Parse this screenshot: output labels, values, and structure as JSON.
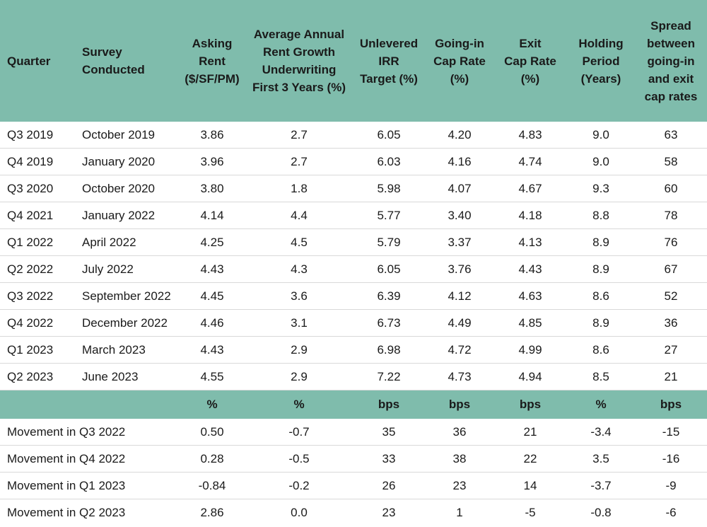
{
  "headers": [
    "Quarter",
    "Survey Conducted",
    "Asking Rent ($/SF/PM)",
    "Average Annual Rent Growth Underwriting First 3 Years (%)",
    "Unlevered IRR Target (%)",
    "Going-in Cap Rate (%)",
    "Exit Cap Rate (%)",
    "Holding Period (Years)",
    "Spread between going-in and exit cap rates"
  ],
  "header_lines": [
    [
      "Quarter"
    ],
    [
      "Survey",
      "Conducted"
    ],
    [
      "Asking",
      "Rent",
      "($/SF/PM)"
    ],
    [
      "Average Annual",
      "Rent Growth",
      "Underwriting",
      "First 3 Years (%)"
    ],
    [
      "Unlevered",
      "IRR",
      "Target (%)"
    ],
    [
      "Going-in",
      "Cap Rate",
      "(%)"
    ],
    [
      "Exit",
      "Cap Rate",
      "(%)"
    ],
    [
      "Holding",
      "Period",
      "(Years)"
    ],
    [
      "Spread",
      "between",
      "going-in",
      "and exit",
      "cap rates"
    ]
  ],
  "rows": [
    [
      "Q3 2019",
      "October 2019",
      "3.86",
      "2.7",
      "6.05",
      "4.20",
      "4.83",
      "9.0",
      "63"
    ],
    [
      "Q4 2019",
      "January 2020",
      "3.96",
      "2.7",
      "6.03",
      "4.16",
      "4.74",
      "9.0",
      "58"
    ],
    [
      "Q3 2020",
      "October 2020",
      "3.80",
      "1.8",
      "5.98",
      "4.07",
      "4.67",
      "9.3",
      "60"
    ],
    [
      "Q4 2021",
      "January 2022",
      "4.14",
      "4.4",
      "5.77",
      "3.40",
      "4.18",
      "8.8",
      "78"
    ],
    [
      "Q1 2022",
      "April 2022",
      "4.25",
      "4.5",
      "5.79",
      "3.37",
      "4.13",
      "8.9",
      "76"
    ],
    [
      "Q2 2022",
      "July 2022",
      "4.43",
      "4.3",
      "6.05",
      "3.76",
      "4.43",
      "8.9",
      "67"
    ],
    [
      "Q3 2022",
      "September 2022",
      "4.45",
      "3.6",
      "6.39",
      "4.12",
      "4.63",
      "8.6",
      "52"
    ],
    [
      "Q4 2022",
      "December 2022",
      "4.46",
      "3.1",
      "6.73",
      "4.49",
      "4.85",
      "8.9",
      "36"
    ],
    [
      "Q1 2023",
      "March 2023",
      "4.43",
      "2.9",
      "6.98",
      "4.72",
      "4.99",
      "8.6",
      "27"
    ],
    [
      "Q2 2023",
      "June 2023",
      "4.55",
      "2.9",
      "7.22",
      "4.73",
      "4.94",
      "8.5",
      "21"
    ]
  ],
  "units_row": [
    "",
    "",
    "%",
    "%",
    "bps",
    "bps",
    "bps",
    "%",
    "bps"
  ],
  "movement_rows": [
    [
      "Movement in Q3 2022",
      "0.50",
      "-0.7",
      "35",
      "36",
      "21",
      "-3.4",
      "-15"
    ],
    [
      "Movement in Q4 2022",
      "0.28",
      "-0.5",
      "33",
      "38",
      "22",
      "3.5",
      "-16"
    ],
    [
      "Movement in Q1 2023",
      "-0.84",
      "-0.2",
      "26",
      "23",
      "14",
      "-3.7",
      "-9"
    ],
    [
      "Movement in Q2 2023",
      "2.86",
      "0.0",
      "23",
      "1",
      "-5",
      "-0.8",
      "-6"
    ]
  ],
  "colors": {
    "header_bg": "#7fbcac",
    "row_border": "#d9d9d9",
    "text": "#1a1a1a"
  }
}
